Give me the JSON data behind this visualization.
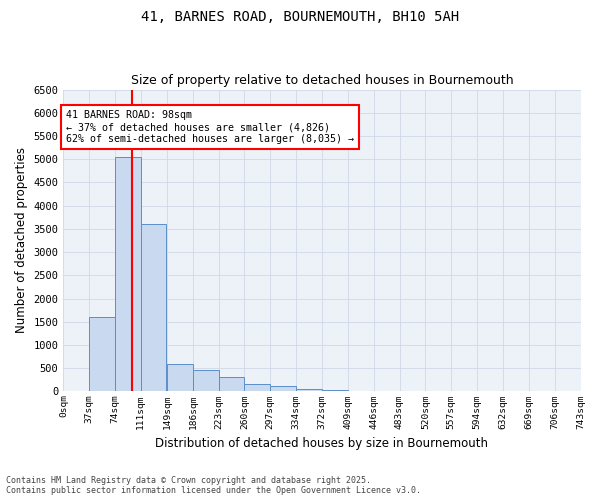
{
  "title1": "41, BARNES ROAD, BOURNEMOUTH, BH10 5AH",
  "title2": "Size of property relative to detached houses in Bournemouth",
  "xlabel": "Distribution of detached houses by size in Bournemouth",
  "ylabel": "Number of detached properties",
  "bin_labels": [
    "0sqm",
    "37sqm",
    "74sqm",
    "111sqm",
    "149sqm",
    "186sqm",
    "223sqm",
    "260sqm",
    "297sqm",
    "334sqm",
    "372sqm",
    "409sqm",
    "446sqm",
    "483sqm",
    "520sqm",
    "557sqm",
    "594sqm",
    "632sqm",
    "669sqm",
    "706sqm",
    "743sqm"
  ],
  "bin_edges": [
    0,
    37,
    74,
    111,
    149,
    186,
    223,
    260,
    297,
    334,
    372,
    409,
    446,
    483,
    520,
    557,
    594,
    632,
    669,
    706,
    743
  ],
  "bar_heights": [
    0,
    1600,
    5050,
    3600,
    600,
    450,
    300,
    150,
    110,
    60,
    40,
    10,
    0,
    0,
    0,
    0,
    0,
    0,
    0,
    0
  ],
  "bar_color": "#c9d9ef",
  "bar_edge_color": "#5b8fc9",
  "grid_color": "#d0d8e8",
  "vline_x": 98,
  "vline_color": "red",
  "annotation_text": "41 BARNES ROAD: 98sqm\n← 37% of detached houses are smaller (4,826)\n62% of semi-detached houses are larger (8,035) →",
  "annotation_box_color": "white",
  "annotation_box_edge_color": "red",
  "ylim": [
    0,
    6500
  ],
  "yticks": [
    0,
    500,
    1000,
    1500,
    2000,
    2500,
    3000,
    3500,
    4000,
    4500,
    5000,
    5500,
    6000,
    6500
  ],
  "footnote": "Contains HM Land Registry data © Crown copyright and database right 2025.\nContains public sector information licensed under the Open Government Licence v3.0.",
  "bg_color": "#edf1f8",
  "fig_bg_color": "#ffffff"
}
